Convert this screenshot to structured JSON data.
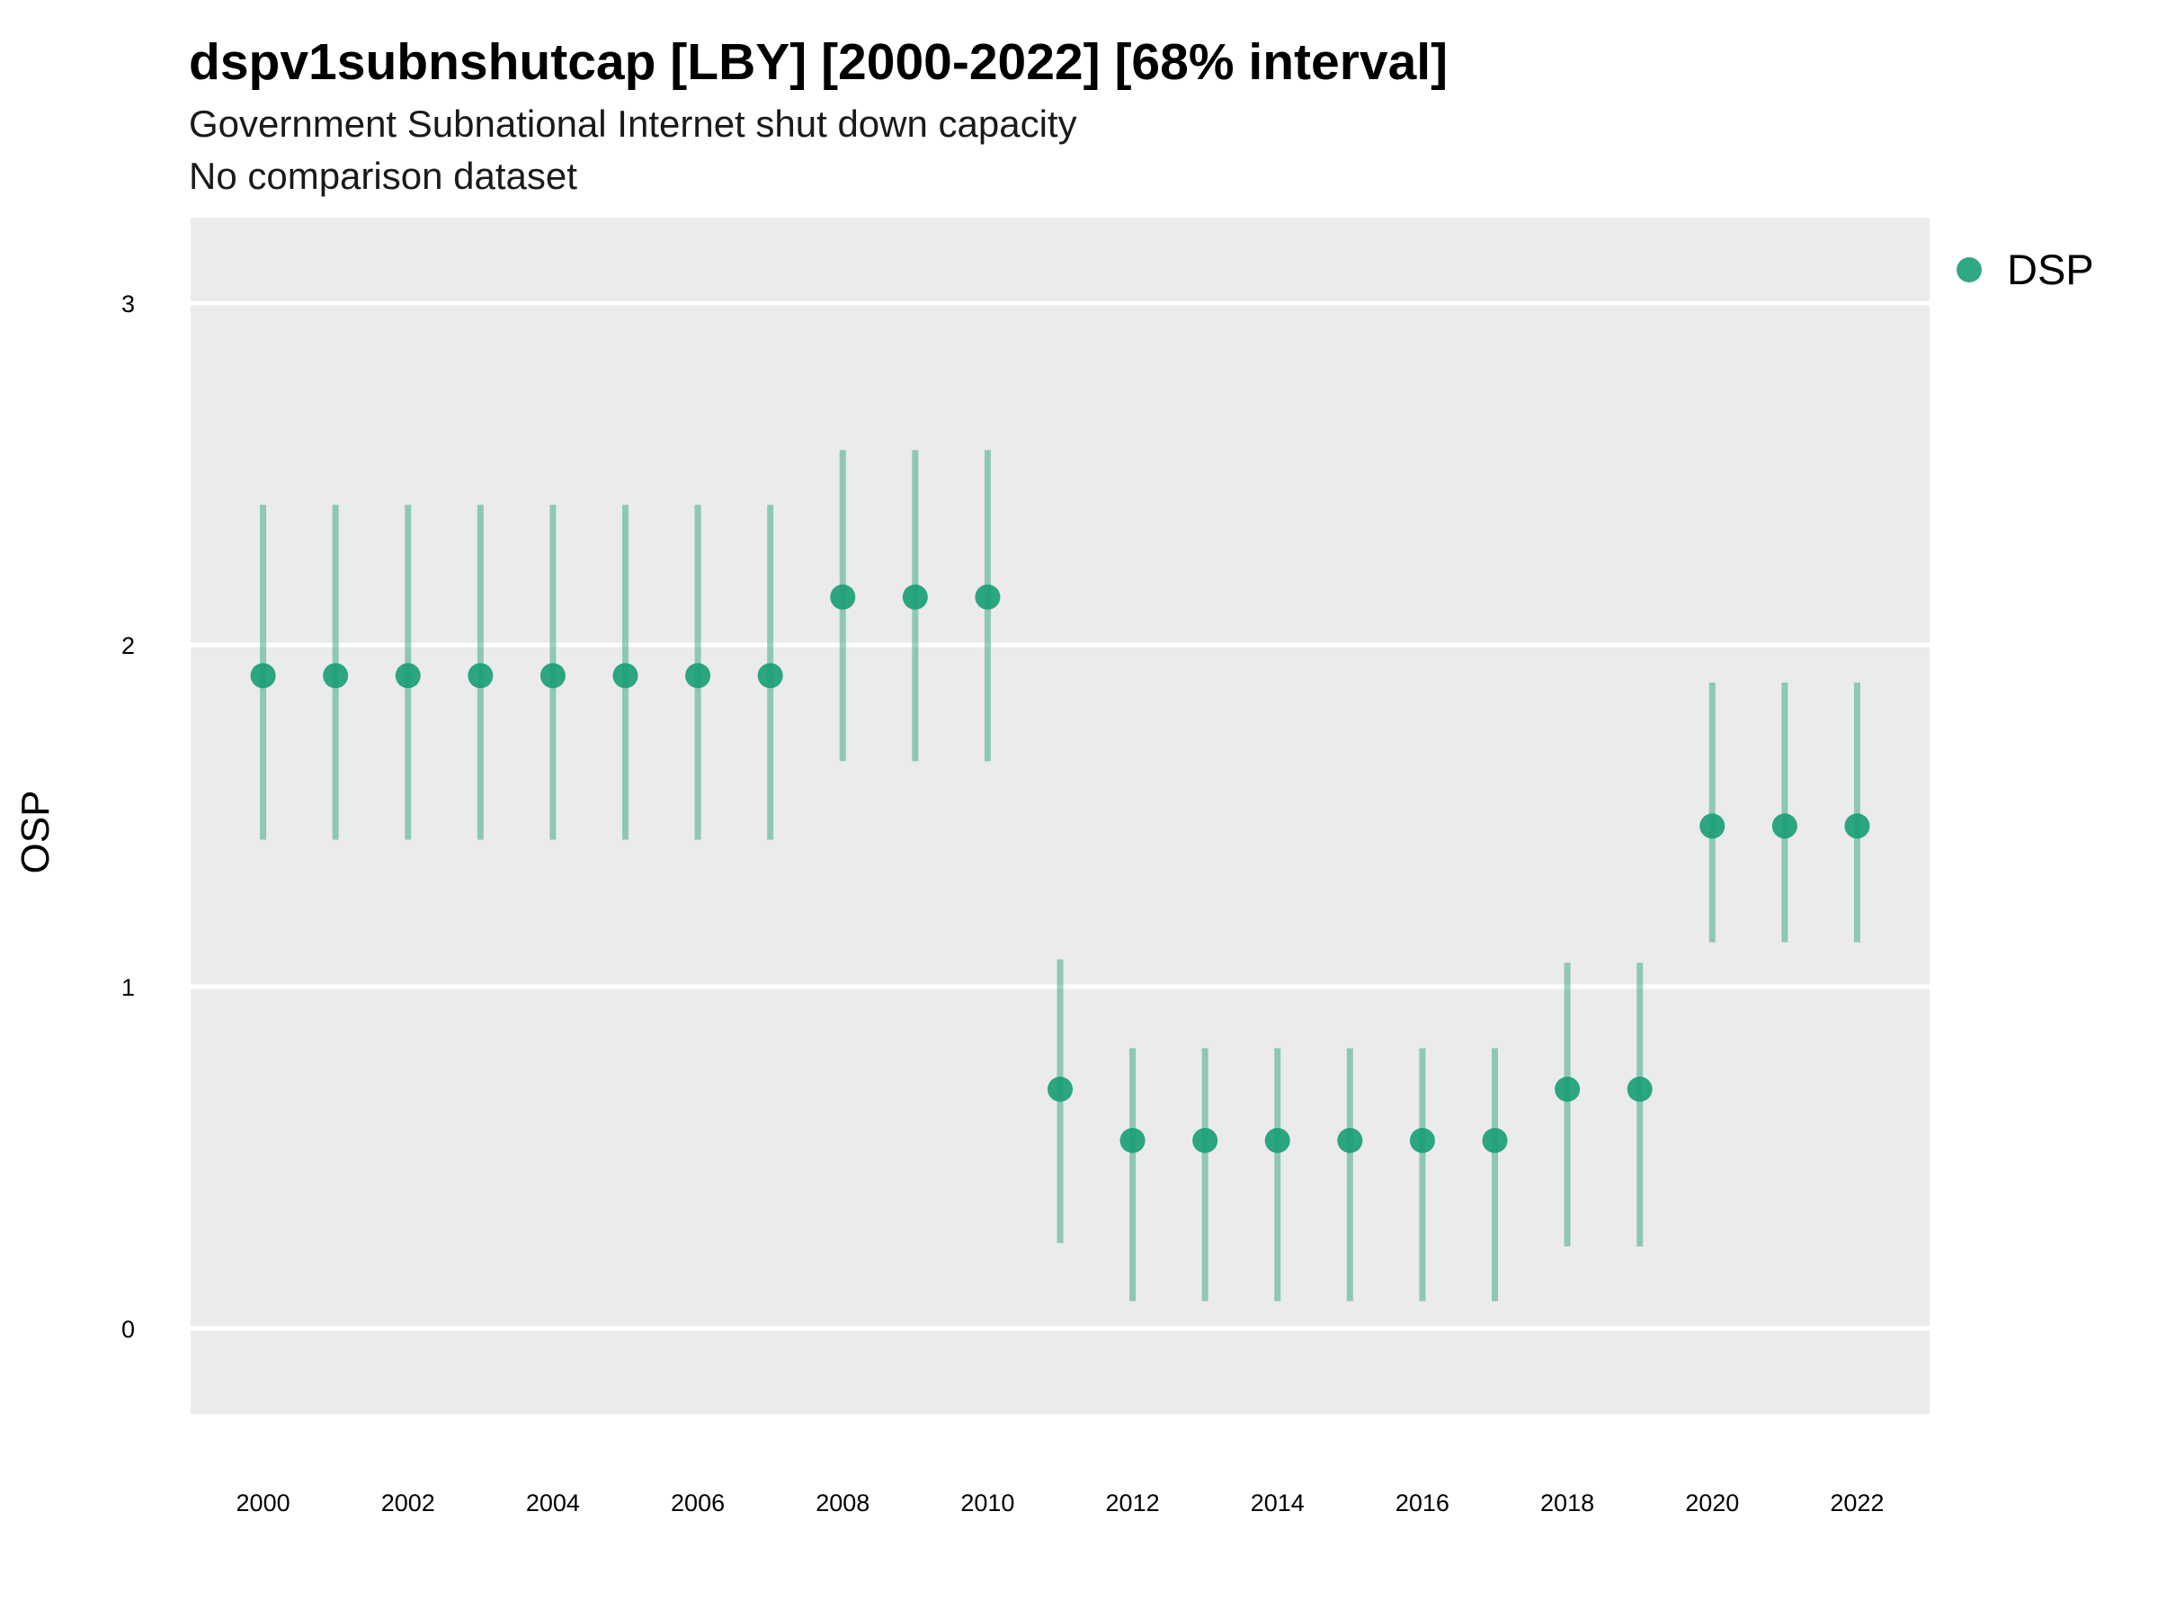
{
  "chart_data": {
    "type": "scatter",
    "title": "dspv1subnshutcap [LBY] [2000-2022] [68% interval]",
    "subtitle": "Government Subnational Internet shut down capacity",
    "subtitle2": "No comparison dataset",
    "xlabel": "",
    "ylabel": "OSP",
    "xlim": [
      1999,
      2023
    ],
    "ylim": [
      -0.25,
      3.25
    ],
    "y_ticks": [
      0,
      1,
      2,
      3
    ],
    "x_ticks": [
      2000,
      2002,
      2004,
      2006,
      2008,
      2010,
      2012,
      2014,
      2016,
      2018,
      2020,
      2022
    ],
    "grid": true,
    "legend_position": "top-right",
    "series": [
      {
        "name": "DSP",
        "color": "#1b9e77",
        "x": [
          2000,
          2001,
          2002,
          2003,
          2004,
          2005,
          2006,
          2007,
          2008,
          2009,
          2010,
          2011,
          2012,
          2013,
          2014,
          2015,
          2016,
          2017,
          2018,
          2019,
          2020,
          2021,
          2022
        ],
        "y": [
          1.91,
          1.91,
          1.91,
          1.91,
          1.91,
          1.91,
          1.91,
          1.91,
          2.14,
          2.14,
          2.14,
          0.7,
          0.55,
          0.55,
          0.55,
          0.55,
          0.55,
          0.55,
          0.7,
          0.7,
          1.47,
          1.47,
          1.47
        ],
        "lower": [
          1.43,
          1.43,
          1.43,
          1.43,
          1.43,
          1.43,
          1.43,
          1.43,
          1.66,
          1.66,
          1.66,
          0.25,
          0.08,
          0.08,
          0.08,
          0.08,
          0.08,
          0.08,
          0.24,
          0.24,
          1.13,
          1.13,
          1.13
        ],
        "upper": [
          2.41,
          2.41,
          2.41,
          2.41,
          2.41,
          2.41,
          2.41,
          2.41,
          2.57,
          2.57,
          2.57,
          1.08,
          0.82,
          0.82,
          0.82,
          0.82,
          0.82,
          0.82,
          1.07,
          1.07,
          1.89,
          1.89,
          1.89
        ]
      }
    ]
  }
}
